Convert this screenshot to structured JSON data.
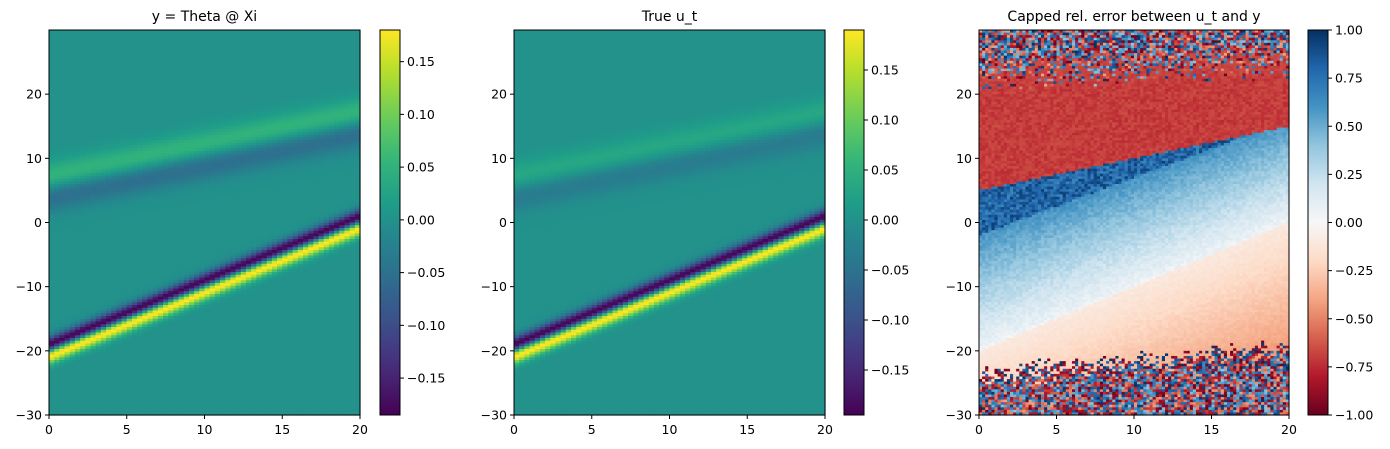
{
  "chart_data": [
    {
      "type": "heatmap",
      "title": "y = Theta @ Xi",
      "xlim": [
        0,
        20
      ],
      "ylim": [
        -30,
        30
      ],
      "xticks": [
        0,
        5,
        10,
        15,
        20
      ],
      "yticks": [
        -30,
        -20,
        -10,
        0,
        10,
        20
      ],
      "colormap": "viridis",
      "clim": [
        -0.185,
        0.18
      ],
      "colorbar_ticks": [
        -0.15,
        -0.1,
        -0.05,
        0.0,
        0.05,
        0.1,
        0.15
      ],
      "colorbar_ticklabels": [
        "−0.15",
        "−0.10",
        "−0.05",
        "0.00",
        "0.05",
        "0.10",
        "0.15"
      ],
      "features": {
        "main_pulse": {
          "start_x": -20,
          "slope": 1.0,
          "amplitude": 0.18,
          "description": "positive crest leading a negative trough"
        },
        "secondary_wave": {
          "start_x": 5.5,
          "slope": 0.5,
          "amplitude": 0.06
        }
      }
    },
    {
      "type": "heatmap",
      "title": "True u_t",
      "xlim": [
        0,
        20
      ],
      "ylim": [
        -30,
        30
      ],
      "xticks": [
        0,
        5,
        10,
        15,
        20
      ],
      "yticks": [
        -30,
        -20,
        -10,
        0,
        10,
        20
      ],
      "colormap": "viridis",
      "clim": [
        -0.195,
        0.19
      ],
      "colorbar_ticks": [
        -0.15,
        -0.1,
        -0.05,
        0.0,
        0.05,
        0.1,
        0.15
      ],
      "colorbar_ticklabels": [
        "−0.15",
        "−0.10",
        "−0.05",
        "0.00",
        "0.05",
        "0.10",
        "0.15"
      ],
      "features": {
        "main_pulse": {
          "start_x": -20,
          "slope": 1.0,
          "amplitude": 0.19
        },
        "secondary_wave": {
          "start_x": 5.5,
          "slope": 0.5,
          "amplitude": 0.04
        }
      }
    },
    {
      "type": "heatmap",
      "title": "Capped rel. error between u_t and y",
      "xlim": [
        0,
        20
      ],
      "ylim": [
        -30,
        30
      ],
      "xticks": [
        0,
        5,
        10,
        15,
        20
      ],
      "yticks": [
        -30,
        -20,
        -10,
        0,
        10,
        20
      ],
      "colormap": "RdBu",
      "clim": [
        -1.0,
        1.0
      ],
      "colorbar_ticks": [
        -1.0,
        -0.75,
        -0.5,
        -0.25,
        0.0,
        0.25,
        0.5,
        0.75,
        1.0
      ],
      "colorbar_ticklabels": [
        "−1.00",
        "−0.75",
        "−0.50",
        "−0.25",
        "0.00",
        "0.25",
        "0.50",
        "0.75",
        "1.00"
      ],
      "features": {
        "red_band": {
          "lower_boundary_start": 5,
          "slope": 0.5,
          "value": -0.7
        },
        "blue_band": {
          "upper_boundary_start": 5,
          "lower_boundary_start": -12,
          "value": 0.8
        },
        "light_band_boundary": {
          "start": -20,
          "slope": 1.0
        },
        "noise_region": "outside bands, values alternate between -1 and 1"
      }
    }
  ]
}
